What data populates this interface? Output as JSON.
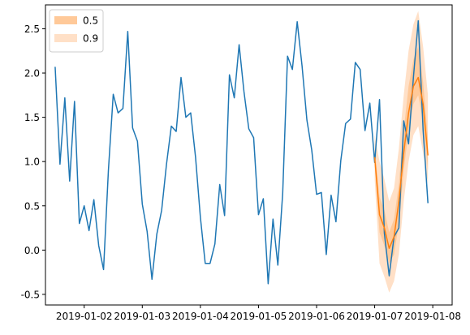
{
  "chart_data": {
    "type": "line",
    "title": "",
    "xlabel": "",
    "ylabel": "",
    "xlim": [
      "2019-01-01 08:00",
      "2019-01-08 08:00"
    ],
    "ylim": [
      -0.62,
      2.77
    ],
    "x_ticks": [
      "2019-01-02",
      "2019-01-03",
      "2019-01-04",
      "2019-01-05",
      "2019-01-06",
      "2019-01-07",
      "2019-01-08"
    ],
    "y_ticks": [
      "-0.5",
      "0.0",
      "0.5",
      "1.0",
      "1.5",
      "2.0",
      "2.5"
    ],
    "y_tick_values": [
      -0.5,
      0.0,
      0.5,
      1.0,
      1.5,
      2.0,
      2.5
    ],
    "grid": false,
    "legend_position": "top-left",
    "series": [
      {
        "kind": "observed",
        "color": "#1f77b4",
        "x": [
          "2019-01-01 12:00",
          "2019-01-01 14:00",
          "2019-01-01 16:00",
          "2019-01-01 18:00",
          "2019-01-01 20:00",
          "2019-01-01 22:00",
          "2019-01-02 00:00",
          "2019-01-02 02:00",
          "2019-01-02 04:00",
          "2019-01-02 06:00",
          "2019-01-02 08:00",
          "2019-01-02 10:00",
          "2019-01-02 12:00",
          "2019-01-02 14:00",
          "2019-01-02 16:00",
          "2019-01-02 18:00",
          "2019-01-02 20:00",
          "2019-01-02 22:00",
          "2019-01-03 00:00",
          "2019-01-03 02:00",
          "2019-01-03 04:00",
          "2019-01-03 06:00",
          "2019-01-03 08:00",
          "2019-01-03 10:00",
          "2019-01-03 12:00",
          "2019-01-03 14:00",
          "2019-01-03 16:00",
          "2019-01-03 18:00",
          "2019-01-03 20:00",
          "2019-01-03 22:00",
          "2019-01-04 00:00",
          "2019-01-04 02:00",
          "2019-01-04 04:00",
          "2019-01-04 06:00",
          "2019-01-04 08:00",
          "2019-01-04 10:00",
          "2019-01-04 12:00",
          "2019-01-04 14:00",
          "2019-01-04 16:00",
          "2019-01-04 18:00",
          "2019-01-04 20:00",
          "2019-01-04 22:00",
          "2019-01-05 00:00",
          "2019-01-05 02:00",
          "2019-01-05 04:00",
          "2019-01-05 06:00",
          "2019-01-05 08:00",
          "2019-01-05 10:00",
          "2019-01-05 12:00",
          "2019-01-05 14:00",
          "2019-01-05 16:00",
          "2019-01-05 18:00",
          "2019-01-05 20:00",
          "2019-01-05 22:00",
          "2019-01-06 00:00",
          "2019-01-06 02:00",
          "2019-01-06 04:00",
          "2019-01-06 06:00",
          "2019-01-06 08:00",
          "2019-01-06 10:00",
          "2019-01-06 12:00",
          "2019-01-06 14:00",
          "2019-01-06 16:00",
          "2019-01-06 18:00",
          "2019-01-06 20:00",
          "2019-01-06 22:00",
          "2019-01-07 00:00",
          "2019-01-07 02:00",
          "2019-01-07 04:00",
          "2019-01-07 06:00",
          "2019-01-07 08:00",
          "2019-01-07 10:00",
          "2019-01-07 12:00",
          "2019-01-07 14:00",
          "2019-01-07 16:00",
          "2019-01-07 18:00",
          "2019-01-07 20:00",
          "2019-01-07 22:00"
        ],
        "y": [
          2.07,
          0.97,
          1.72,
          0.78,
          1.68,
          0.3,
          0.5,
          0.22,
          0.57,
          0.05,
          -0.22,
          0.9,
          1.76,
          1.55,
          1.6,
          2.47,
          1.38,
          1.23,
          0.52,
          0.21,
          -0.33,
          0.18,
          0.45,
          0.97,
          1.4,
          1.34,
          1.95,
          1.5,
          1.55,
          1.05,
          0.37,
          -0.15,
          -0.15,
          0.07,
          0.74,
          0.39,
          1.98,
          1.72,
          2.32,
          1.79,
          1.37,
          1.27,
          0.4,
          0.58,
          -0.38,
          0.35,
          -0.17,
          0.64,
          2.19,
          2.04,
          2.58,
          2.08,
          1.47,
          1.13,
          0.63,
          0.65,
          -0.05,
          0.62,
          0.32,
          1.01,
          1.43,
          1.48,
          2.12,
          2.04,
          1.35,
          1.66,
          0.99,
          1.7,
          0.19,
          -0.29,
          0.15,
          0.25,
          1.46,
          1.2,
          1.95,
          2.59,
          1.36,
          0.53
        ]
      },
      {
        "kind": "forecast",
        "color": "#ff7f0e",
        "x": [
          "2019-01-07 00:00",
          "2019-01-07 02:00",
          "2019-01-07 04:00",
          "2019-01-07 06:00",
          "2019-01-07 08:00",
          "2019-01-07 10:00",
          "2019-01-07 12:00",
          "2019-01-07 14:00",
          "2019-01-07 16:00",
          "2019-01-07 18:00",
          "2019-01-07 20:00",
          "2019-01-07 22:00"
        ],
        "y": [
          1.05,
          0.4,
          0.25,
          0.02,
          0.15,
          0.55,
          1.1,
          1.55,
          1.85,
          1.95,
          1.65,
          1.07
        ],
        "bands": [
          {
            "name": "0.5",
            "color": "#ffc999",
            "low": [
              0.95,
              0.2,
              0.05,
              -0.15,
              -0.05,
              0.3,
              0.9,
              1.35,
              1.65,
              1.75,
              1.45,
              0.9
            ],
            "high": [
              1.15,
              0.6,
              0.45,
              0.2,
              0.35,
              0.75,
              1.35,
              1.85,
              2.15,
              2.3,
              1.9,
              1.25
            ]
          },
          {
            "name": "0.9",
            "color": "#ffe0c7",
            "low": [
              0.8,
              -0.15,
              -0.3,
              -0.48,
              -0.35,
              -0.05,
              0.55,
              1.0,
              1.3,
              1.4,
              1.1,
              0.75
            ],
            "high": [
              1.3,
              1.0,
              0.8,
              0.55,
              0.7,
              1.15,
              1.75,
              2.25,
              2.55,
              2.7,
              2.3,
              1.75
            ]
          }
        ]
      }
    ],
    "legend": [
      {
        "label": "0.5",
        "color": "#ffc999"
      },
      {
        "label": "0.9",
        "color": "#ffe0c7"
      }
    ]
  }
}
